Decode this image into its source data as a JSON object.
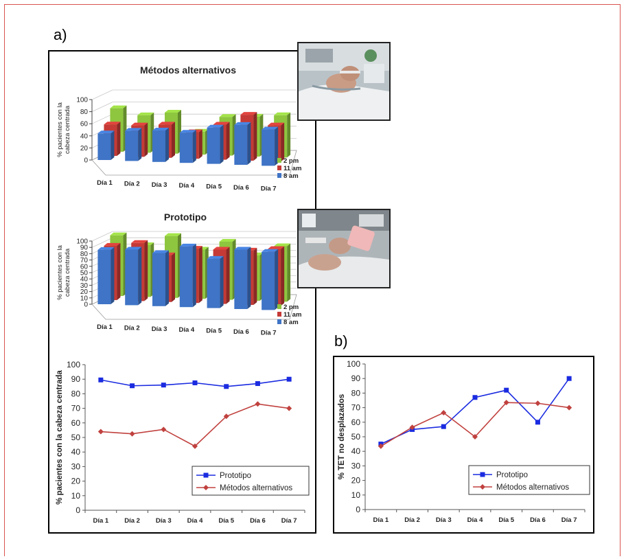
{
  "labels": {
    "panel_a": "a)",
    "panel_b": "b)"
  },
  "colors": {
    "series_8am": "#3f74c6",
    "series_11am": "#c53a36",
    "series_2pm": "#8ec63f",
    "prototipo": "#1a2be0",
    "metodos": "#c0413e"
  },
  "chart_data": [
    {
      "type": "bar",
      "title": "Métodos alternativos",
      "ylabel_lines": [
        "% pacientes con la",
        "cabeza centrada"
      ],
      "ylim": [
        0,
        100
      ],
      "yticks": [
        0,
        20,
        40,
        60,
        80,
        100
      ],
      "categories": [
        "Día 1",
        "Día 2",
        "Día 3",
        "Día 4",
        "Día 5",
        "Día 6",
        "Día 7"
      ],
      "series": [
        {
          "name": "8 am",
          "values": [
            44,
            50,
            52,
            50,
            60,
            66,
            60
          ]
        },
        {
          "name": "11 am",
          "values": [
            52,
            52,
            55,
            44,
            58,
            76,
            60
          ]
        },
        {
          "name": "2 pm",
          "values": [
            72,
            62,
            68,
            38,
            64,
            66,
            70
          ]
        }
      ],
      "legend": "right"
    },
    {
      "type": "bar",
      "title": "Prototipo",
      "ylabel_lines": [
        "% pacientes con la",
        "cabeza centrada"
      ],
      "ylim": [
        0,
        100
      ],
      "yticks": [
        0,
        10,
        20,
        30,
        40,
        50,
        60,
        70,
        80,
        90,
        100
      ],
      "categories": [
        "Día 1",
        "Día 2",
        "Día 3",
        "Día 4",
        "Día 5",
        "Día 6",
        "Día 7"
      ],
      "series": [
        {
          "name": "8 am",
          "values": [
            86,
            88,
            84,
            96,
            78,
            94,
            92
          ]
        },
        {
          "name": "11 am",
          "values": [
            86,
            92,
            74,
            86,
            86,
            86,
            90
          ]
        },
        {
          "name": "2 pm",
          "values": [
            96,
            82,
            98,
            78,
            92,
            72,
            88
          ]
        }
      ],
      "legend": "right"
    },
    {
      "type": "line",
      "ylabel": "% pacientes con la cabeza centrada",
      "ylim": [
        0,
        100
      ],
      "yticks": [
        0,
        10,
        20,
        30,
        40,
        50,
        60,
        70,
        80,
        90,
        100
      ],
      "categories": [
        "Día 1",
        "Día 2",
        "Día 3",
        "Día 4",
        "Día 5",
        "Día 6",
        "Día 7"
      ],
      "series": [
        {
          "name": "Prototipo",
          "values": [
            89.5,
            85.5,
            86,
            87.5,
            85,
            87,
            90
          ]
        },
        {
          "name": "Métodos alternativos",
          "values": [
            54,
            52.5,
            55.5,
            44,
            64.5,
            73,
            70
          ]
        }
      ],
      "legend": "bottom-right"
    },
    {
      "type": "line",
      "ylabel": "% TET no desplazados",
      "ylim": [
        0,
        100
      ],
      "yticks": [
        0,
        10,
        20,
        30,
        40,
        50,
        60,
        70,
        80,
        90,
        100
      ],
      "categories": [
        "Día 1",
        "Día 2",
        "Día 3",
        "Día 4",
        "Día 5",
        "Día 6",
        "Día 7"
      ],
      "series": [
        {
          "name": "Prototipo",
          "values": [
            45,
            55,
            57,
            77,
            82,
            60,
            90
          ]
        },
        {
          "name": "Métodos alternativos",
          "values": [
            43.5,
            56.5,
            66.5,
            50,
            73.5,
            73,
            70
          ]
        }
      ],
      "legend": "bottom-right"
    }
  ]
}
